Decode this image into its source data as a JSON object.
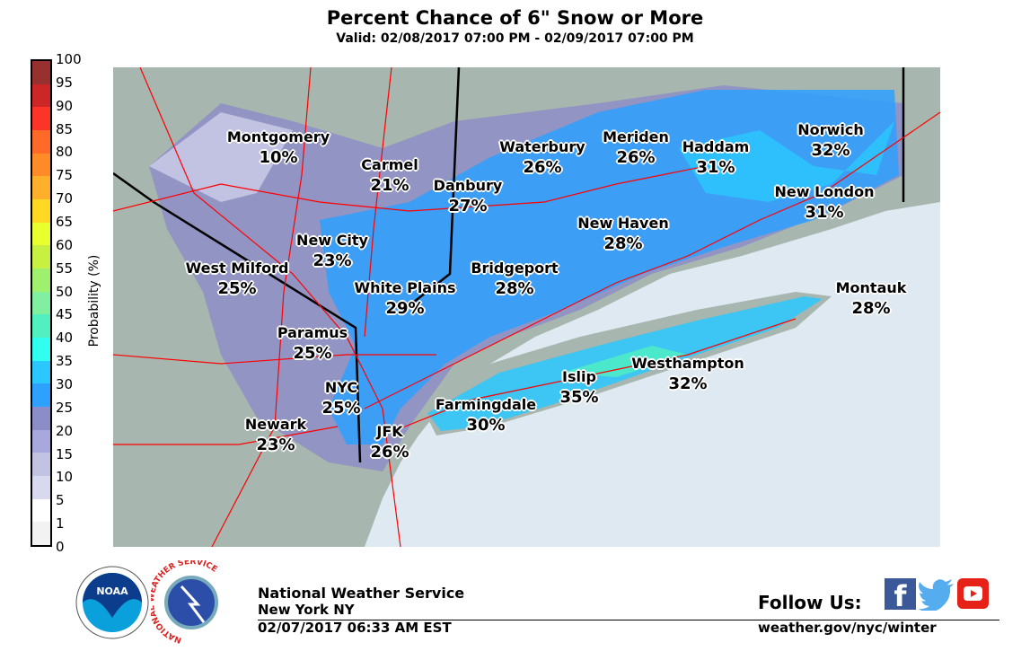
{
  "title": "Percent Chance of 6\" Snow or More",
  "subtitle": "Valid: 02/08/2017 07:00 PM - 02/09/2017 07:00 PM",
  "legend": {
    "label": "Probability (%)",
    "ticks": [
      "0",
      "1",
      "5",
      "10",
      "15",
      "20",
      "25",
      "30",
      "35",
      "40",
      "45",
      "50",
      "55",
      "60",
      "65",
      "70",
      "75",
      "80",
      "85",
      "90",
      "95",
      "100"
    ],
    "colors": [
      "#f2f2f2",
      "#ffffff",
      "#d8d8ee",
      "#c2c2e2",
      "#a8a8dc",
      "#8c8cc8",
      "#2ea0ff",
      "#2ac8ff",
      "#30fff0",
      "#50f0c0",
      "#80f0a0",
      "#a0f070",
      "#c8f040",
      "#eaff2e",
      "#ffd824",
      "#ffb02a",
      "#ff8a28",
      "#ff6a28",
      "#ff3428",
      "#cc2626",
      "#993030"
    ]
  },
  "cities": [
    {
      "name": "Montgomery",
      "pct": "10%"
    },
    {
      "name": "Carmel",
      "pct": "21%"
    },
    {
      "name": "Danbury",
      "pct": "27%"
    },
    {
      "name": "Waterbury",
      "pct": "26%"
    },
    {
      "name": "Meriden",
      "pct": "26%"
    },
    {
      "name": "Haddam",
      "pct": "31%"
    },
    {
      "name": "Norwich",
      "pct": "32%"
    },
    {
      "name": "New London",
      "pct": "31%"
    },
    {
      "name": "New Haven",
      "pct": "28%"
    },
    {
      "name": "New City",
      "pct": "23%"
    },
    {
      "name": "West Milford",
      "pct": "25%"
    },
    {
      "name": "Bridgeport",
      "pct": "28%"
    },
    {
      "name": "White Plains",
      "pct": "29%"
    },
    {
      "name": "Montauk",
      "pct": "28%"
    },
    {
      "name": "Paramus",
      "pct": "25%"
    },
    {
      "name": "Islip",
      "pct": "35%"
    },
    {
      "name": "Westhampton",
      "pct": "32%"
    },
    {
      "name": "NYC",
      "pct": "25%"
    },
    {
      "name": "Farmingdale",
      "pct": "30%"
    },
    {
      "name": "Newark",
      "pct": "23%"
    },
    {
      "name": "JFK",
      "pct": "26%"
    }
  ],
  "footer": {
    "org": "National Weather Service",
    "office": "New York NY",
    "issued": "02/07/2017 06:33 AM EST",
    "follow": "Follow Us:",
    "url": "weather.gov/nyc/winter",
    "noaa_logo_text": "NOAA",
    "nws_logo_text": "NATIONAL WEATHER SERVICE"
  }
}
